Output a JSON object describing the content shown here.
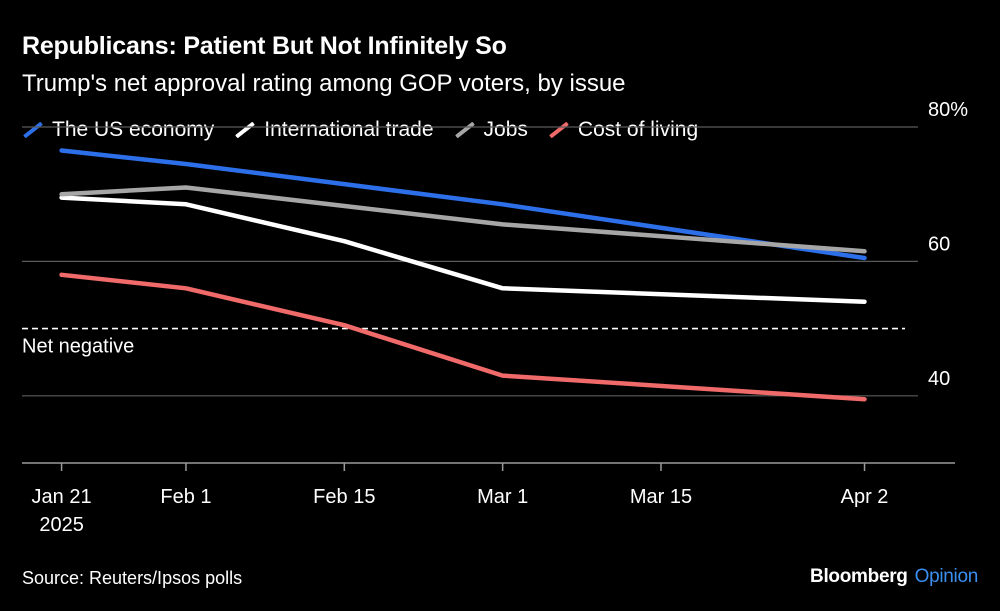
{
  "header": {
    "title": "Republicans: Patient But Not Infinitely So",
    "subtitle": "Trump's net approval rating among GOP voters, by issue"
  },
  "footer": {
    "source": "Source: Reuters/Ipsos polls",
    "brand_main": "Bloomberg",
    "brand_sub": "Opinion"
  },
  "colors": {
    "background": "#000000",
    "gridline": "#5a5a5a",
    "axis": "#9a9a9a",
    "text": "#ffffff",
    "brand_accent": "#3b8ff0"
  },
  "chart_data": {
    "type": "line",
    "title": "Republicans: Patient But Not Infinitely So",
    "subtitle": "Trump's net approval rating among GOP voters, by issue",
    "xlabel": "",
    "ylabel": "",
    "x_ticks": [
      {
        "day": 0,
        "label": "Jan 21",
        "sublabel": "2025"
      },
      {
        "day": 11,
        "label": "Feb 1"
      },
      {
        "day": 25,
        "label": "Feb 15"
      },
      {
        "day": 39,
        "label": "Mar 1"
      },
      {
        "day": 53,
        "label": "Mar 15"
      },
      {
        "day": 71,
        "label": "Apr 2"
      }
    ],
    "xlim": [
      -3.5,
      79
    ],
    "ylim": [
      30,
      80
    ],
    "y_ticks": [
      {
        "value": 80,
        "label": "80%"
      },
      {
        "value": 60,
        "label": "60"
      },
      {
        "value": 40,
        "label": "40"
      }
    ],
    "reference_line": {
      "value": 50,
      "label": "Net negative",
      "style": "dashed"
    },
    "grid": true,
    "legend_position": "top-left",
    "series": [
      {
        "name": "The US economy",
        "color": "#2c6fe8",
        "points": [
          [
            0,
            76.5
          ],
          [
            11,
            74.5
          ],
          [
            39,
            68.5
          ],
          [
            71,
            60.5
          ]
        ]
      },
      {
        "name": "International trade",
        "color": "#ffffff",
        "points": [
          [
            0,
            69.5
          ],
          [
            11,
            68.5
          ],
          [
            25,
            63
          ],
          [
            39,
            56
          ],
          [
            71,
            54
          ]
        ]
      },
      {
        "name": "Jobs",
        "color": "#a6a6a6",
        "points": [
          [
            0,
            70
          ],
          [
            11,
            71
          ],
          [
            39,
            65.5
          ],
          [
            71,
            61.5
          ]
        ]
      },
      {
        "name": "Cost of living",
        "color": "#f06a6a",
        "points": [
          [
            0,
            58
          ],
          [
            11,
            56
          ],
          [
            25,
            50.5
          ],
          [
            39,
            43
          ],
          [
            71,
            39.5
          ]
        ]
      }
    ]
  }
}
